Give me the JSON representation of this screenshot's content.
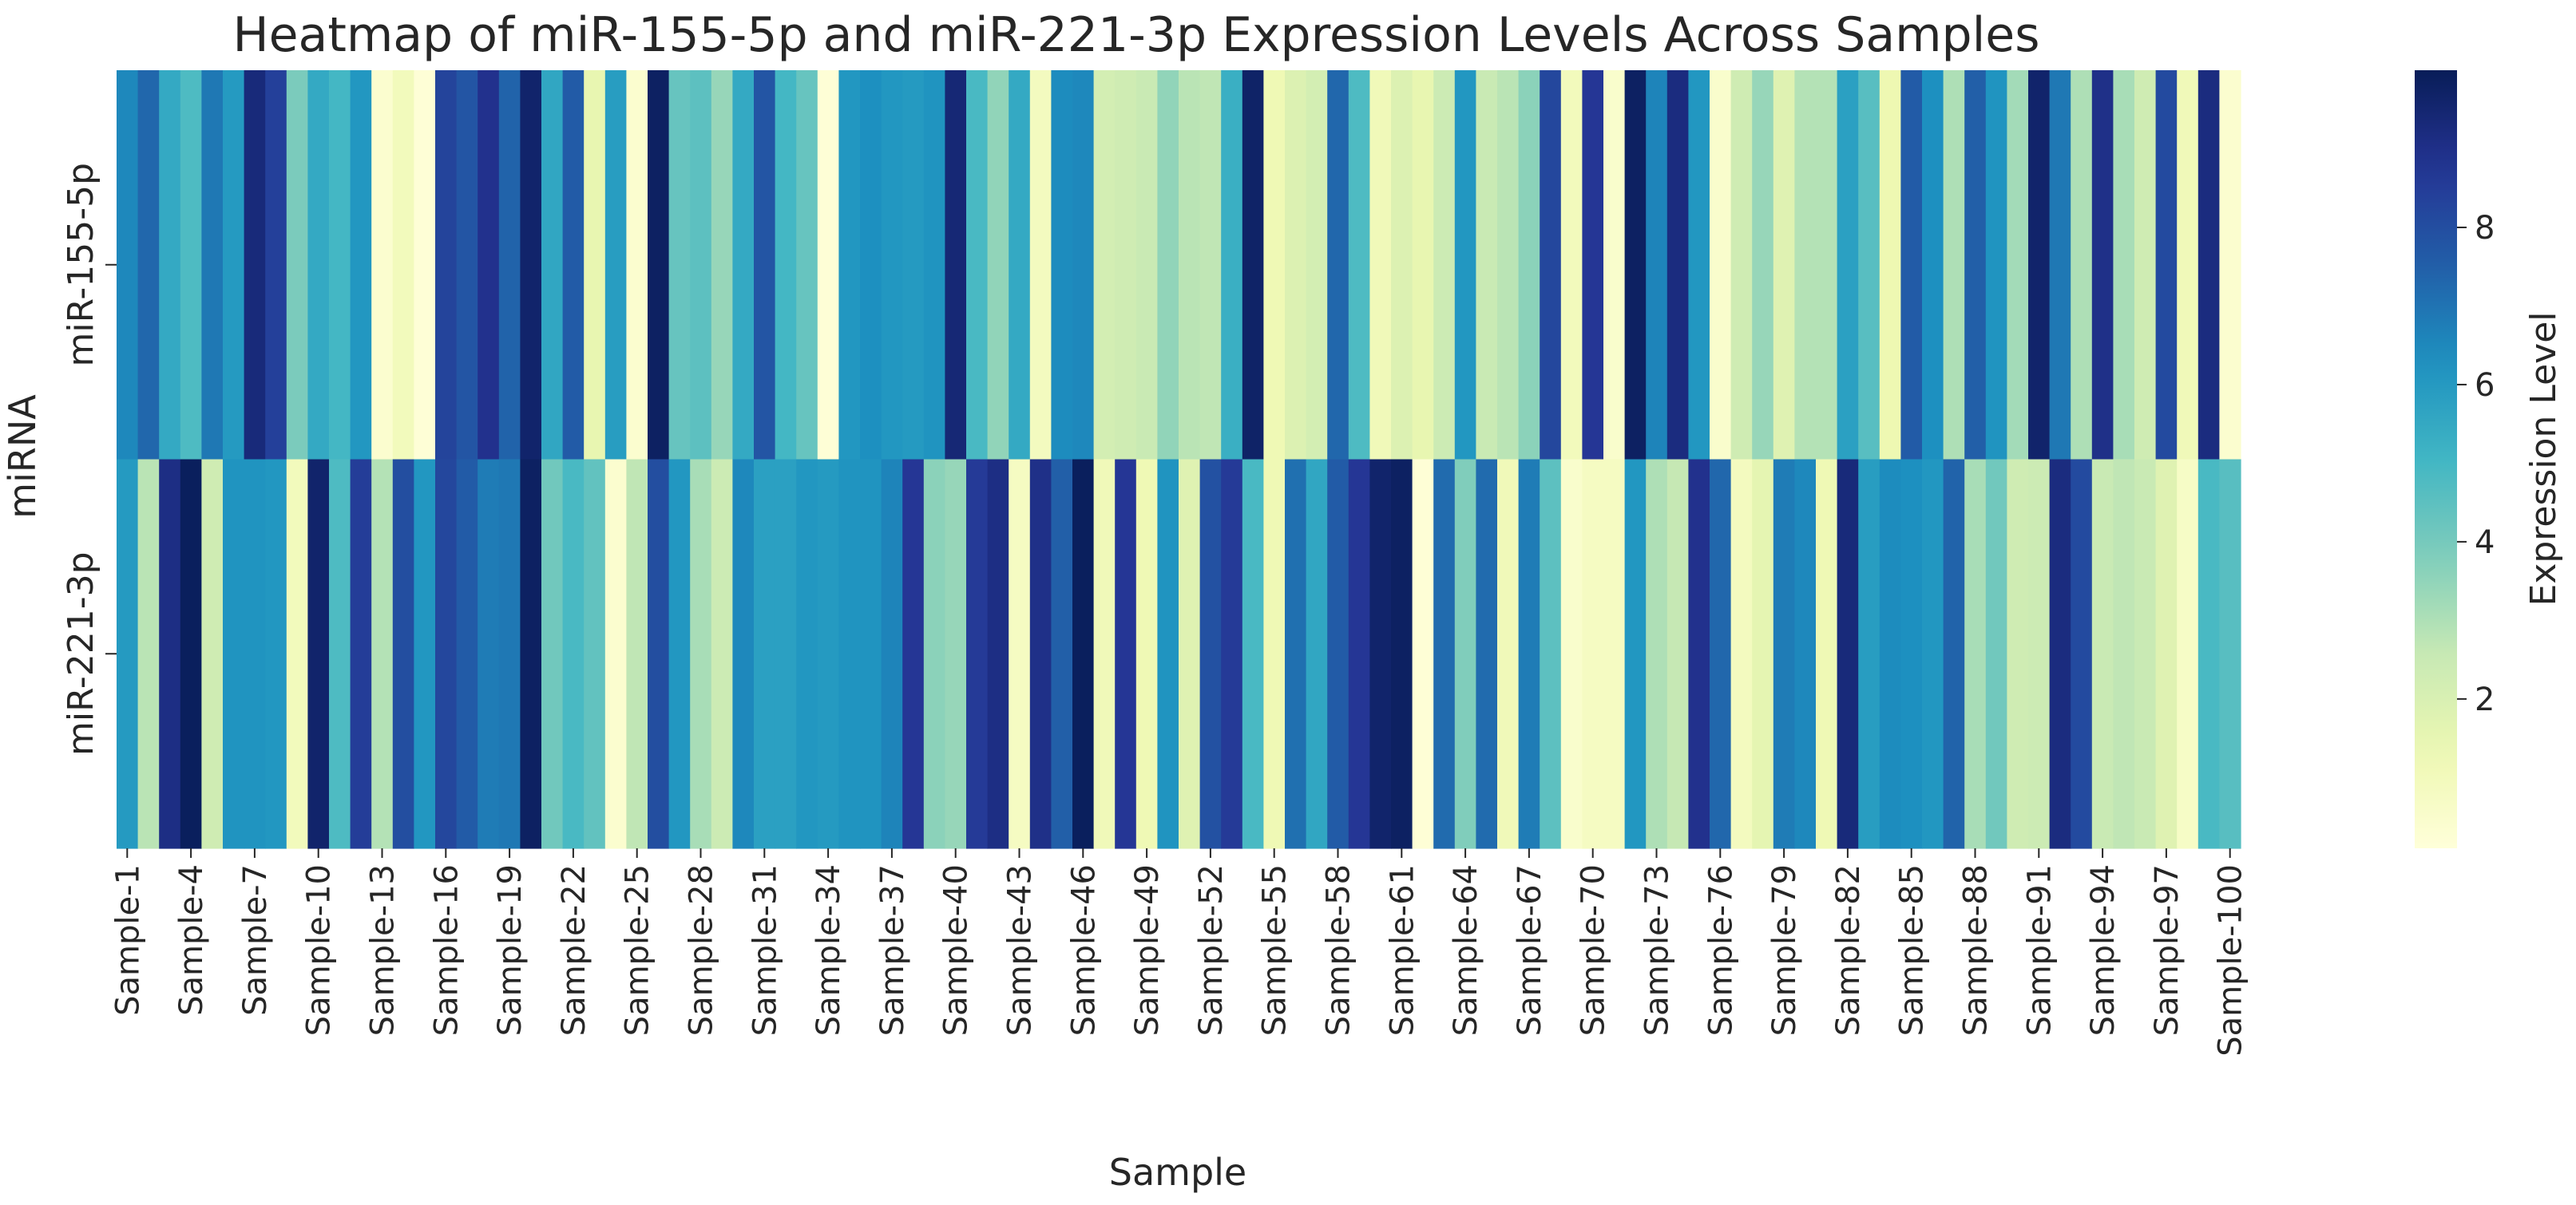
{
  "chart_data": {
    "type": "heatmap",
    "title": "Heatmap of miR-155-5p and miR-221-3p Expression Levels Across Samples",
    "xlabel": "Sample",
    "ylabel": "miRNA",
    "rows": [
      "miR-155-5p",
      "miR-221-3p"
    ],
    "tick_labels": [
      "Sample-1",
      "Sample-4",
      "Sample-7",
      "Sample-10",
      "Sample-13",
      "Sample-16",
      "Sample-19",
      "Sample-22",
      "Sample-25",
      "Sample-28",
      "Sample-31",
      "Sample-34",
      "Sample-37",
      "Sample-40",
      "Sample-43",
      "Sample-46",
      "Sample-49",
      "Sample-52",
      "Sample-55",
      "Sample-58",
      "Sample-61",
      "Sample-64",
      "Sample-67",
      "Sample-70",
      "Sample-73",
      "Sample-76",
      "Sample-79",
      "Sample-82",
      "Sample-85",
      "Sample-88",
      "Sample-91",
      "Sample-94",
      "Sample-97",
      "Sample-100"
    ],
    "values": [
      [
        6.5,
        7.3,
        5.5,
        4.8,
        6.9,
        6.0,
        9.3,
        8.4,
        3.9,
        5.5,
        5.0,
        6.1,
        0.4,
        1.0,
        0.2,
        8.3,
        7.8,
        8.9,
        7.4,
        9.6,
        5.6,
        7.6,
        1.5,
        5.9,
        0.4,
        9.8,
        4.3,
        4.5,
        3.4,
        5.5,
        7.8,
        5.0,
        4.3,
        0.2,
        6.1,
        6.3,
        6.1,
        6.0,
        6.2,
        9.4,
        4.9,
        3.5,
        5.5,
        0.9,
        6.4,
        6.5,
        2.2,
        2.3,
        2.5,
        3.5,
        2.8,
        2.7,
        5.3,
        9.7,
        1.2,
        1.9,
        2.2,
        7.3,
        4.8,
        1.1,
        1.9,
        1.5,
        2.4,
        6.1,
        2.5,
        2.8,
        3.6,
        8.2,
        1.0,
        8.7,
        0.5,
        9.8,
        6.6,
        9.2,
        6.1,
        0.5,
        2.3,
        3.4,
        1.8,
        2.9,
        2.9,
        5.8,
        4.6,
        1.3,
        7.6,
        6.3,
        3.0,
        7.5,
        6.2,
        3.2,
        9.6,
        6.9,
        3.0,
        9.0,
        3.1,
        2.3,
        8.1,
        1.1,
        9.2,
        0.4
      ],
      [
        6.0,
        2.8,
        9.1,
        9.9,
        2.3,
        6.2,
        6.2,
        6.1,
        1.0,
        9.6,
        4.8,
        8.5,
        2.9,
        8.0,
        6.1,
        8.2,
        7.6,
        6.8,
        6.9,
        9.8,
        4.1,
        4.9,
        4.4,
        0.4,
        2.7,
        8.0,
        6.1,
        3.1,
        2.4,
        6.5,
        5.8,
        5.8,
        6.1,
        6.0,
        6.2,
        6.2,
        6.6,
        8.7,
        3.6,
        3.4,
        8.6,
        9.1,
        0.8,
        9.0,
        7.5,
        9.9,
        1.1,
        8.7,
        1.2,
        6.2,
        1.8,
        7.9,
        8.6,
        4.9,
        1.2,
        7.1,
        5.6,
        7.6,
        8.7,
        9.6,
        9.8,
        0.2,
        7.2,
        3.8,
        7.2,
        1.1,
        6.8,
        4.5,
        0.5,
        0.8,
        0.8,
        6.1,
        3.0,
        2.6,
        8.9,
        7.3,
        0.9,
        1.6,
        6.8,
        6.5,
        1.2,
        9.3,
        5.9,
        6.4,
        6.3,
        6.1,
        7.4,
        3.1,
        4.1,
        2.3,
        2.4,
        9.2,
        8.1,
        2.5,
        2.7,
        2.5,
        1.8,
        0.7,
        4.9,
        4.6
      ]
    ],
    "color_scale": "YlGnBu",
    "vmin": 0.1,
    "vmax": 10.0,
    "colorbar_label": "Expression Level",
    "colorbar_ticks": [
      2,
      4,
      6,
      8
    ]
  }
}
